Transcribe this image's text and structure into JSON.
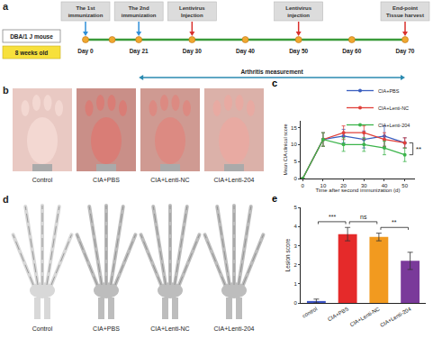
{
  "panels": {
    "a": {
      "panel_label": "a",
      "subject": "DBA/1 J mouse",
      "age": "8 weeks old",
      "days": [
        "Day 0",
        "Day 21",
        "Day 30",
        "Day 40",
        "Day 50",
        "Day 60",
        "Day 70"
      ],
      "events": [
        {
          "lines": [
            "The 1st",
            "immunization"
          ],
          "day": "Day 0",
          "color": "#2f8fd8"
        },
        {
          "lines": [
            "The 2nd",
            "immunization"
          ],
          "day": "Day 21",
          "color": "#2f8fd8"
        },
        {
          "lines": [
            "Lentivirus",
            "Injection"
          ],
          "day": "Day 30",
          "color": "#d9302c"
        },
        {
          "lines": [
            "Lentivirus",
            "injection"
          ],
          "day": "Day 50",
          "color": "#d9302c"
        },
        {
          "lines": [
            "End-point",
            "Tissue harvest"
          ],
          "day": "Day 70",
          "color": "#d9302c"
        }
      ],
      "span": {
        "text": "Arthritis measurement",
        "from": "Day 21",
        "to": "Day 70"
      }
    },
    "b": {
      "panel_label": "b",
      "images": [
        "Control",
        "CIA+PBS",
        "CIA+Lenti-NC",
        "CIA+Lenti-204"
      ]
    },
    "d": {
      "panel_label": "d",
      "images": [
        "Control",
        "CIA+PBS",
        "CIA+Lenti-NC",
        "CIA+Lenti-204"
      ]
    }
  },
  "chart_data": [
    {
      "panel_label": "c",
      "type": "line",
      "x": [
        0,
        10,
        20,
        30,
        40,
        50
      ],
      "x_label": "Time after second immunization (d)",
      "y_label": "Mean CIA clinical score",
      "xlim": [
        -1,
        55
      ],
      "ylim": [
        0,
        17
      ],
      "xticks": [
        0,
        10,
        20,
        30,
        40,
        50
      ],
      "yticks": [
        0,
        5,
        10,
        15
      ],
      "grid": false,
      "legend": "top right",
      "marker": "circle",
      "series": [
        {
          "name": "CIA+PBS",
          "color": "#3b5fc0",
          "values": [
            0,
            11.5,
            12.5,
            11.5,
            12.5,
            10.5
          ],
          "errors": [
            0,
            2,
            2,
            2.5,
            3,
            1.5
          ]
        },
        {
          "name": "CIA+Lenti-NC",
          "color": "#e0403a",
          "values": [
            0,
            11.5,
            13.5,
            13.5,
            11.5,
            10.5
          ],
          "errors": [
            0,
            2,
            2,
            2,
            2,
            1.5
          ]
        },
        {
          "name": "CIA+Lenti-204",
          "color": "#3cb44b",
          "values": [
            0,
            11.5,
            10,
            10,
            9,
            7
          ],
          "errors": [
            0,
            2,
            2,
            2,
            2,
            2
          ]
        }
      ],
      "annotations": [
        {
          "text": "**",
          "between": [
            "CIA+Lenti-NC",
            "CIA+Lenti-204"
          ],
          "x": 50
        }
      ]
    },
    {
      "panel_label": "e",
      "type": "bar",
      "categories": [
        "control",
        "CIA+PBS",
        "CIA+Lenti-NC",
        "CIA+Lenti-204"
      ],
      "values": [
        0.1,
        3.6,
        3.45,
        2.2
      ],
      "errors": [
        0.1,
        0.35,
        0.2,
        0.45
      ],
      "colors": [
        "#3a52c4",
        "#e52a2a",
        "#f29a1f",
        "#7a3a9a"
      ],
      "y_label": "Lesion score",
      "ylim": [
        0,
        5
      ],
      "yticks": [
        0,
        1,
        2,
        3,
        4,
        5
      ],
      "grid": false,
      "annotations": [
        {
          "text": "***",
          "between": [
            "control",
            "CIA+PBS"
          ]
        },
        {
          "text": "ns",
          "between": [
            "CIA+PBS",
            "CIA+Lenti-NC"
          ]
        },
        {
          "text": "**",
          "between": [
            "CIA+Lenti-NC",
            "CIA+Lenti-204"
          ]
        }
      ]
    }
  ]
}
